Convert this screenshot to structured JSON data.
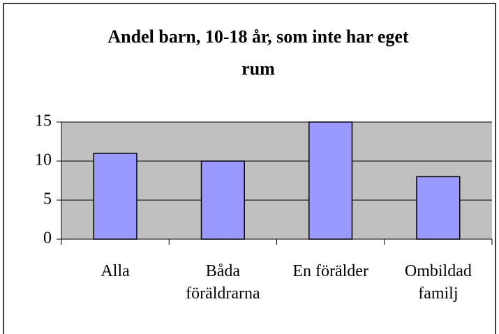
{
  "chart_data": {
    "type": "bar",
    "title": "Andel barn, 10-18 år, som inte har eget\nrum",
    "categories": [
      "Alla",
      "Båda\nföräldrarna",
      "En förälder",
      "Ombildad\nfamilj"
    ],
    "values": [
      11,
      10,
      15,
      8
    ],
    "color": "#9999ff",
    "plot_background": "#c0c0c0",
    "ylim": [
      0,
      15
    ],
    "yticks": [
      0,
      5,
      10,
      15
    ],
    "grid": true
  }
}
